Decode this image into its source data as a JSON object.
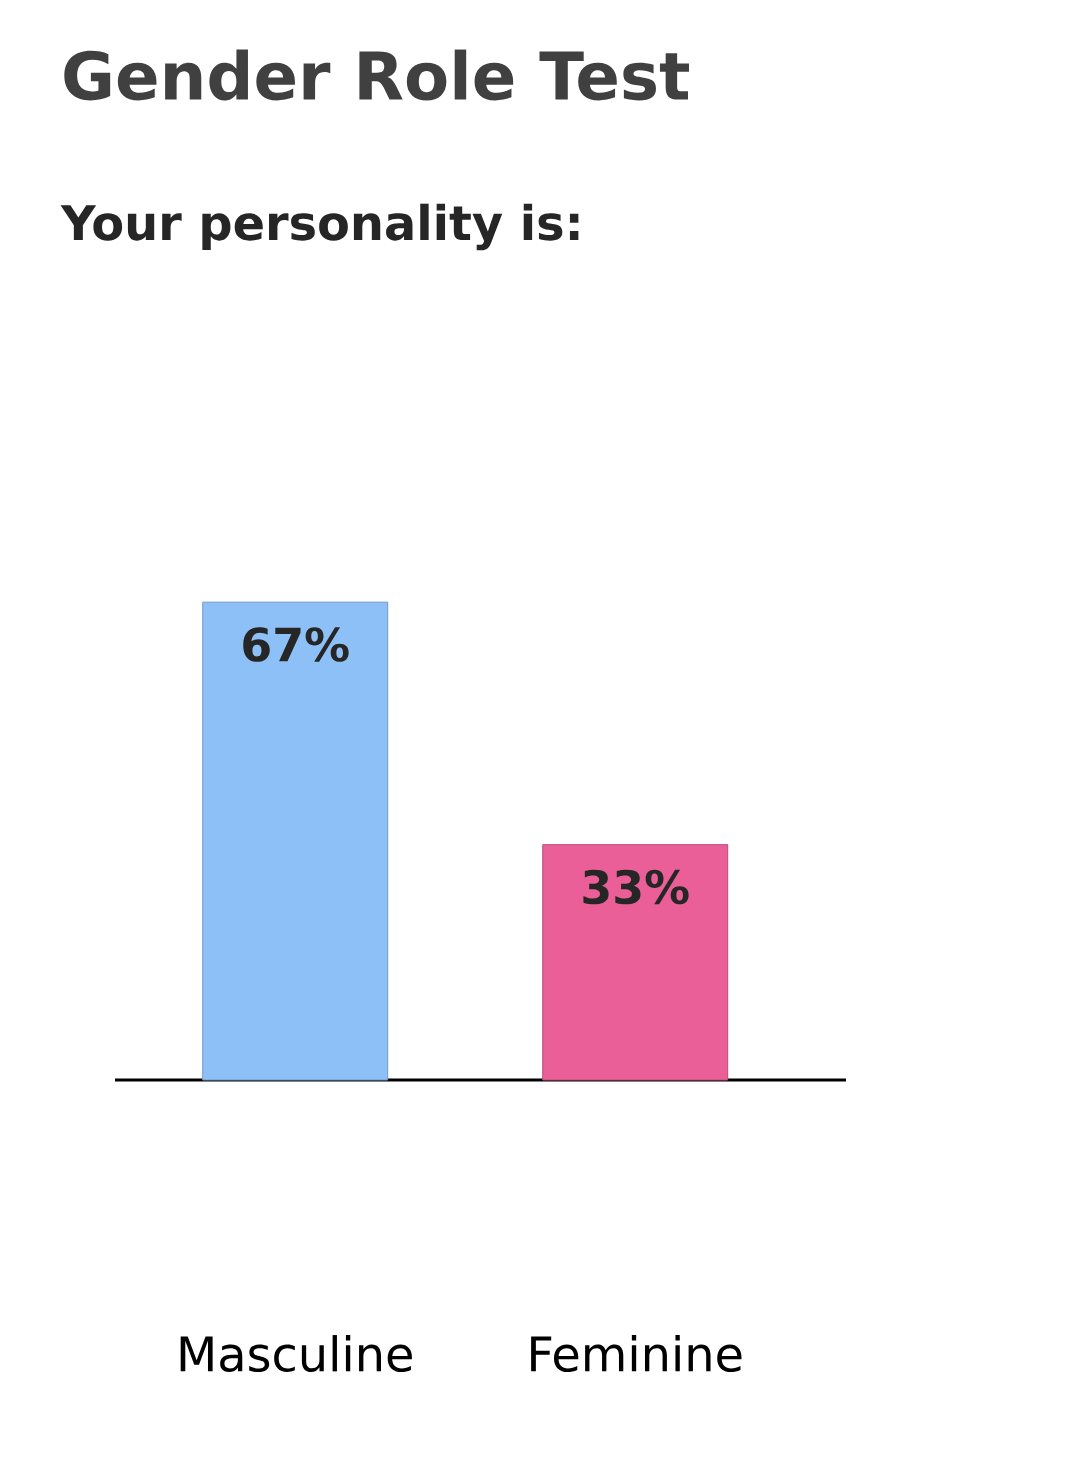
{
  "chart_data": {
    "type": "bar",
    "title": "Gender Role Test",
    "subtitle": "Your personality is:",
    "categories": [
      "Masculine",
      "Feminine"
    ],
    "values": [
      67,
      33
    ],
    "value_labels": [
      "67%",
      "33%"
    ],
    "colors": [
      "#8dc0f6",
      "#ea5f98"
    ]
  }
}
